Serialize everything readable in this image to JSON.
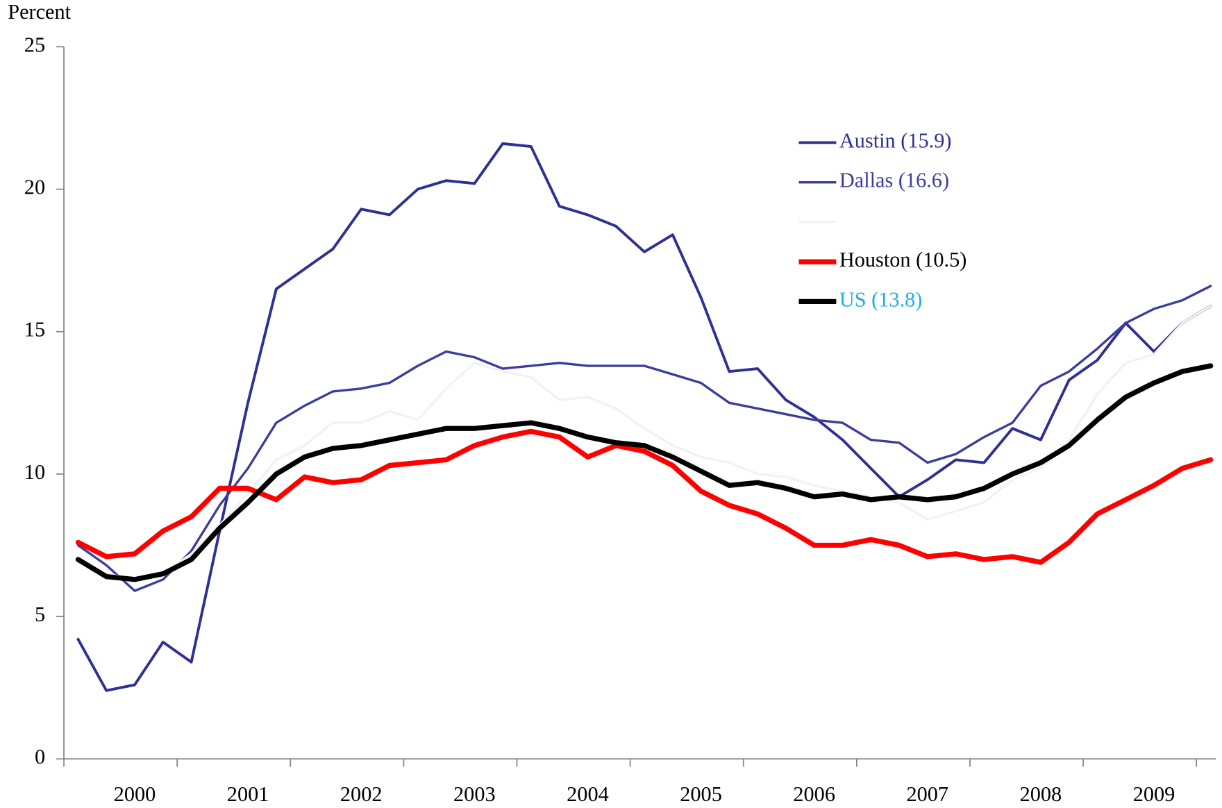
{
  "chart_data": {
    "type": "line",
    "y_axis_label": "Percent",
    "categories": [
      null,
      null,
      "2000",
      null,
      null,
      null,
      "2001",
      null,
      null,
      null,
      "2002",
      null,
      null,
      null,
      "2003",
      null,
      null,
      null,
      "2004",
      null,
      null,
      null,
      "2005",
      null,
      null,
      null,
      "2006",
      null,
      null,
      null,
      "2007",
      null,
      null,
      null,
      "2008",
      null,
      null,
      null,
      "2009",
      null,
      null
    ],
    "ylim": [
      0,
      25
    ],
    "yticks": [
      0,
      5,
      10,
      15,
      20,
      25
    ],
    "legend": "upper-right",
    "series": [
      {
        "name": "Austin (15.9)",
        "color": "#2e3192",
        "label_color": "#2e3192",
        "width": 3.5,
        "values": [
          4.2,
          2.4,
          2.6,
          4.1,
          3.4,
          8.0,
          12.5,
          16.5,
          17.2,
          17.9,
          19.3,
          19.1,
          20.0,
          20.3,
          20.2,
          21.6,
          21.5,
          19.4,
          19.1,
          18.7,
          17.8,
          18.4,
          16.2,
          13.6,
          13.7,
          12.6,
          12.0,
          11.2,
          10.2,
          9.2,
          9.8,
          10.5,
          10.4,
          11.6,
          11.2,
          13.3,
          14.0,
          15.3,
          14.3,
          15.3,
          15.9
        ]
      },
      {
        "name": "Dallas (16.6)",
        "color": "#3a3d9e",
        "label_color": "#3a3d9e",
        "width": 3,
        "values": [
          7.5,
          6.8,
          5.9,
          6.3,
          7.3,
          8.9,
          10.2,
          11.8,
          12.4,
          12.9,
          13.0,
          13.2,
          13.8,
          14.3,
          14.1,
          13.7,
          13.8,
          13.9,
          13.8,
          13.8,
          13.8,
          13.5,
          13.2,
          12.5,
          12.3,
          12.1,
          11.9,
          11.8,
          11.2,
          11.1,
          10.4,
          10.7,
          11.3,
          11.8,
          13.1,
          13.6,
          14.4,
          15.3,
          15.8,
          16.1,
          16.6
        ]
      },
      {
        "color": "#f2f2f2",
        "width": 3,
        "values": [
          7.0,
          6.5,
          6.3,
          6.5,
          7.2,
          8.2,
          9.3,
          10.5,
          11.0,
          11.8,
          11.8,
          12.2,
          11.9,
          13.0,
          13.9,
          13.6,
          13.4,
          12.6,
          12.7,
          12.3,
          11.6,
          11.0,
          10.6,
          10.4,
          10.0,
          9.9,
          9.6,
          9.4,
          9.2,
          9.0,
          8.4,
          8.7,
          9.0,
          9.8,
          10.2,
          11.2,
          12.8,
          13.9,
          14.2,
          15.3,
          15.9
        ]
      },
      {
        "name": "Houston (10.5)",
        "color": "#ff0000",
        "label_color": "#000000",
        "width": 6.5,
        "values": [
          7.6,
          7.1,
          7.2,
          8.0,
          8.5,
          9.5,
          9.5,
          9.1,
          9.9,
          9.7,
          9.8,
          10.3,
          10.4,
          10.5,
          11.0,
          11.3,
          11.5,
          11.3,
          10.6,
          11.0,
          10.8,
          10.3,
          9.4,
          8.9,
          8.6,
          8.1,
          7.5,
          7.5,
          7.7,
          7.5,
          7.1,
          7.2,
          7.0,
          7.1,
          6.9,
          7.6,
          8.6,
          9.1,
          9.6,
          10.2,
          10.5
        ]
      },
      {
        "name": "US (13.8)",
        "color": "#000000",
        "label_color": "#1ab0e0",
        "width": 6.5,
        "values": [
          7.0,
          6.4,
          6.3,
          6.5,
          7.0,
          8.1,
          9.0,
          10.0,
          10.6,
          10.9,
          11.0,
          11.2,
          11.4,
          11.6,
          11.6,
          11.7,
          11.8,
          11.6,
          11.3,
          11.1,
          11.0,
          10.6,
          10.1,
          9.6,
          9.7,
          9.5,
          9.2,
          9.3,
          9.1,
          9.2,
          9.1,
          9.2,
          9.5,
          10.0,
          10.4,
          11.0,
          11.9,
          12.7,
          13.2,
          13.6,
          13.8
        ]
      }
    ]
  }
}
